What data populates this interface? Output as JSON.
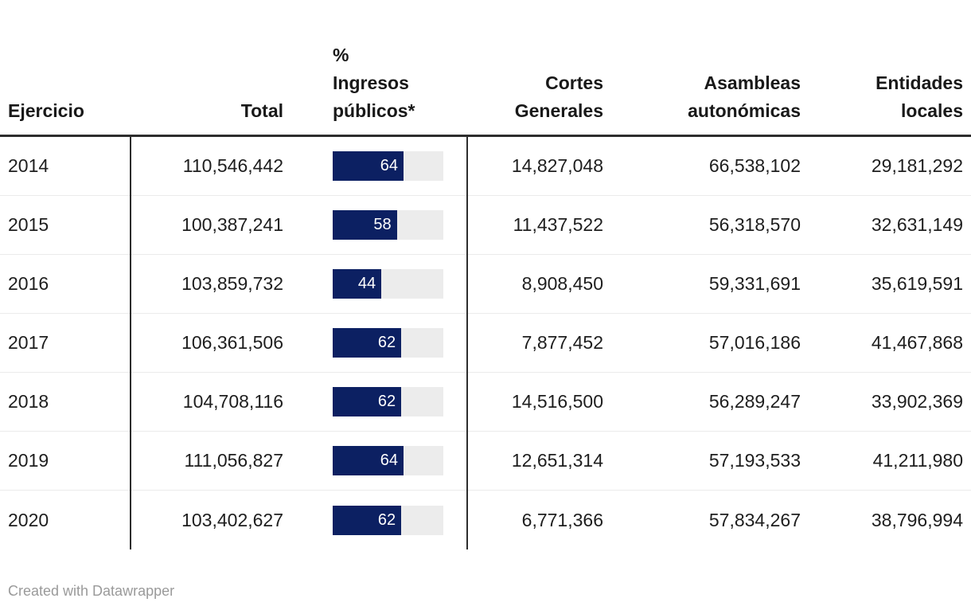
{
  "chart_data": {
    "type": "table",
    "title": "",
    "columns": [
      "Ejercicio",
      "Total",
      "% Ingresos públicos*",
      "Cortes Generales",
      "Asambleas autonómicas",
      "Entidades locales"
    ],
    "bar_column": "% Ingresos públicos*",
    "bar_axis": {
      "min": 0,
      "max": 100
    },
    "rows": [
      {
        "ejercicio": "2014",
        "total": "110,546,442",
        "pct": 64,
        "cortes": "14,827,048",
        "asambleas": "66,538,102",
        "entidades": "29,181,292"
      },
      {
        "ejercicio": "2015",
        "total": "100,387,241",
        "pct": 58,
        "cortes": "11,437,522",
        "asambleas": "56,318,570",
        "entidades": "32,631,149"
      },
      {
        "ejercicio": "2016",
        "total": "103,859,732",
        "pct": 44,
        "cortes": "8,908,450",
        "asambleas": "59,331,691",
        "entidades": "35,619,591"
      },
      {
        "ejercicio": "2017",
        "total": "106,361,506",
        "pct": 62,
        "cortes": "7,877,452",
        "asambleas": "57,016,186",
        "entidades": "41,467,868"
      },
      {
        "ejercicio": "2018",
        "total": "104,708,116",
        "pct": 62,
        "cortes": "14,516,500",
        "asambleas": "56,289,247",
        "entidades": "33,902,369"
      },
      {
        "ejercicio": "2019",
        "total": "111,056,827",
        "pct": 64,
        "cortes": "12,651,314",
        "asambleas": "57,193,533",
        "entidades": "41,211,980"
      },
      {
        "ejercicio": "2020",
        "total": "103,402,627",
        "pct": 62,
        "cortes": "6,771,366",
        "asambleas": "57,834,267",
        "entidades": "38,796,994"
      }
    ]
  },
  "header": {
    "ejercicio": "Ejercicio",
    "total": "Total",
    "pct": "%\nIngresos\npúblicos*",
    "cortes": "Cortes\nGenerales",
    "asambleas": "Asambleas\nautonómicas",
    "entidades": "Entidades\nlocales"
  },
  "footer": {
    "credit": "Created with Datawrapper"
  },
  "colors": {
    "bar": "#0c2062",
    "track": "#ececec",
    "header_rule": "#2d2d2d",
    "divider": "#2d2d2d",
    "row_separator": "#ebebeb",
    "text": "#1e1e1e",
    "footer_text": "#9a9a9a"
  }
}
